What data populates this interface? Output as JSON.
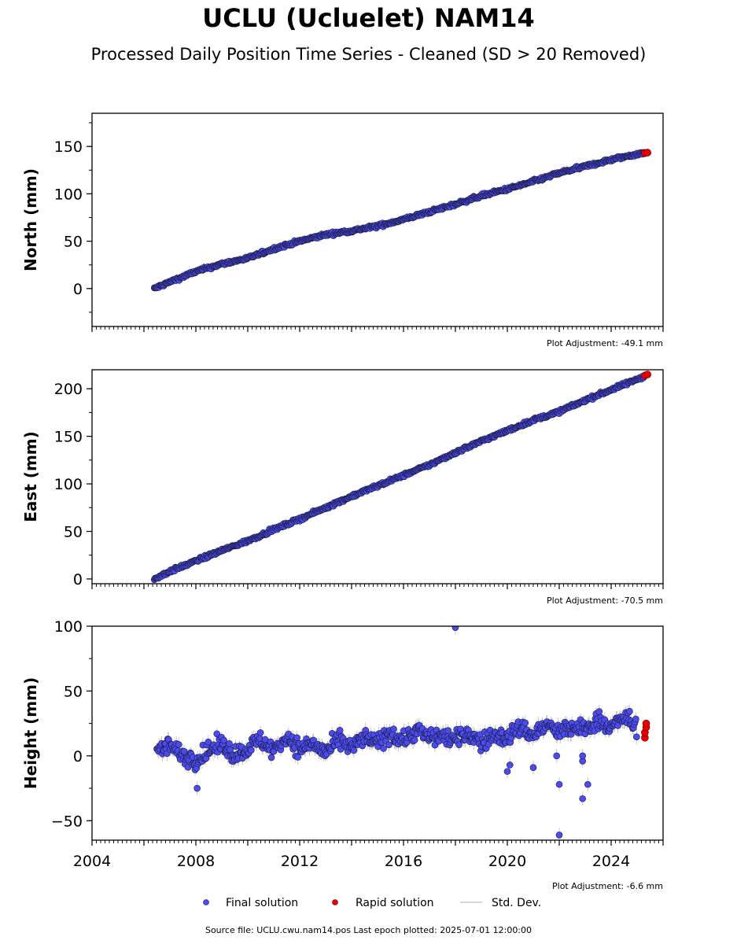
{
  "title": "UCLU (Ucluelet) NAM14",
  "subtitle": "Processed Daily Position Time Series - Cleaned (SD > 20 Removed)",
  "footer": "Source file: UCLU.cwu.nam14.pos  Last epoch plotted: 2025-07-01 12:00:00",
  "legend": {
    "final": "Final solution",
    "rapid": "Rapid solution",
    "std": "Std. Dev."
  },
  "colors": {
    "final": "#4b4bf0",
    "rapid": "#e60000",
    "std": "#c8c8c8",
    "edge": "#1a1a3a"
  },
  "chart_data": [
    {
      "type": "scatter",
      "ylabel": "North (mm)",
      "adjustment": "Plot Adjustment: -49.1 mm",
      "xlim": [
        2004,
        2026
      ],
      "ylim": [
        -40,
        185
      ],
      "yticks": [
        0,
        50,
        100,
        150
      ],
      "xticks": [],
      "final_series": [
        [
          2006.4,
          0
        ],
        [
          2007.0,
          7
        ],
        [
          2008.0,
          18
        ],
        [
          2009.0,
          26
        ],
        [
          2010.0,
          32
        ],
        [
          2011.0,
          42
        ],
        [
          2012.0,
          50
        ],
        [
          2013.0,
          57
        ],
        [
          2014.0,
          61
        ],
        [
          2015.0,
          66
        ],
        [
          2016.0,
          73
        ],
        [
          2017.0,
          81
        ],
        [
          2018.0,
          89
        ],
        [
          2019.0,
          98
        ],
        [
          2020.0,
          105
        ],
        [
          2021.0,
          113
        ],
        [
          2022.0,
          122
        ],
        [
          2023.0,
          129
        ],
        [
          2024.0,
          136
        ],
        [
          2025.0,
          142
        ],
        [
          2025.3,
          143
        ]
      ],
      "rapid_series": [
        [
          2025.3,
          143
        ],
        [
          2025.4,
          143.5
        ]
      ]
    },
    {
      "type": "scatter",
      "ylabel": "East (mm)",
      "adjustment": "Plot Adjustment: -70.5 mm",
      "xlim": [
        2004,
        2026
      ],
      "ylim": [
        -5,
        220
      ],
      "yticks": [
        0,
        50,
        100,
        150,
        200
      ],
      "xticks": [],
      "final_series": [
        [
          2006.4,
          0
        ],
        [
          2007.0,
          8
        ],
        [
          2008.0,
          19
        ],
        [
          2009.0,
          30
        ],
        [
          2010.0,
          40
        ],
        [
          2011.0,
          52
        ],
        [
          2012.0,
          63
        ],
        [
          2013.0,
          75
        ],
        [
          2014.0,
          87
        ],
        [
          2015.0,
          98
        ],
        [
          2016.0,
          109
        ],
        [
          2017.0,
          120
        ],
        [
          2018.0,
          133
        ],
        [
          2019.0,
          145
        ],
        [
          2020.0,
          156
        ],
        [
          2021.0,
          167
        ],
        [
          2022.0,
          176
        ],
        [
          2023.0,
          188
        ],
        [
          2024.0,
          199
        ],
        [
          2025.0,
          210
        ],
        [
          2025.3,
          214
        ]
      ],
      "rapid_series": [
        [
          2025.3,
          214
        ],
        [
          2025.4,
          215
        ]
      ]
    },
    {
      "type": "scatter",
      "ylabel": "Height (mm)",
      "adjustment": "Plot Adjustment: -6.6 mm",
      "xlim": [
        2004,
        2026
      ],
      "ylim": [
        -65,
        100
      ],
      "yticks": [
        -50,
        0,
        50,
        100
      ],
      "xticks": [
        2004,
        2008,
        2012,
        2016,
        2020,
        2024
      ],
      "ytick_labels": [
        "−50",
        "0",
        "50",
        "100"
      ],
      "final_series": [
        [
          2006.5,
          5
        ],
        [
          2007.0,
          8
        ],
        [
          2007.5,
          0
        ],
        [
          2008.0,
          -3
        ],
        [
          2008.5,
          4
        ],
        [
          2009.0,
          9
        ],
        [
          2009.5,
          1
        ],
        [
          2010.0,
          6
        ],
        [
          2010.5,
          12
        ],
        [
          2011.0,
          4
        ],
        [
          2011.5,
          15
        ],
        [
          2012.0,
          5
        ],
        [
          2012.5,
          10
        ],
        [
          2013.0,
          2
        ],
        [
          2013.5,
          12
        ],
        [
          2014.0,
          6
        ],
        [
          2014.5,
          14
        ],
        [
          2015.0,
          10
        ],
        [
          2015.5,
          18
        ],
        [
          2016.0,
          12
        ],
        [
          2016.5,
          20
        ],
        [
          2017.0,
          14
        ],
        [
          2017.5,
          16
        ],
        [
          2018.0,
          12
        ],
        [
          2018.5,
          18
        ],
        [
          2019.0,
          10
        ],
        [
          2019.5,
          16
        ],
        [
          2020.0,
          14
        ],
        [
          2020.5,
          22
        ],
        [
          2021.0,
          16
        ],
        [
          2021.5,
          24
        ],
        [
          2022.0,
          18
        ],
        [
          2022.5,
          22
        ],
        [
          2023.0,
          20
        ],
        [
          2023.5,
          28
        ],
        [
          2024.0,
          22
        ],
        [
          2024.5,
          30
        ],
        [
          2025.0,
          22
        ]
      ],
      "outliers": [
        [
          2018.0,
          99
        ],
        [
          2008.05,
          -25
        ],
        [
          2020.0,
          -12
        ],
        [
          2020.1,
          -7
        ],
        [
          2021.0,
          -9
        ],
        [
          2022.0,
          -22
        ],
        [
          2022.0,
          -61
        ],
        [
          2022.9,
          -33
        ],
        [
          2023.1,
          -22
        ],
        [
          2022.9,
          -4
        ],
        [
          2022.9,
          0
        ],
        [
          2021.9,
          0
        ]
      ],
      "rapid_series": [
        [
          2025.3,
          14
        ],
        [
          2025.3,
          18
        ],
        [
          2025.35,
          22
        ],
        [
          2025.35,
          25
        ]
      ]
    }
  ]
}
